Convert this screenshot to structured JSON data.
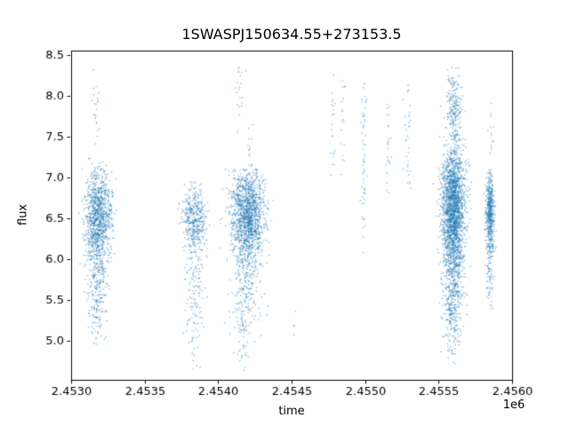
{
  "chart_data": {
    "type": "scatter",
    "title": "1SWASPJ150634.55+273153.5",
    "xlabel": "time",
    "ylabel": "flux",
    "x_offset_text": "1e6",
    "xlim": [
      2.453,
      2.456
    ],
    "ylim": [
      4.52,
      8.55
    ],
    "xticks": {
      "values": [
        2.453,
        2.4535,
        2.454,
        2.4545,
        2.455,
        2.4555,
        2.456
      ],
      "labels": [
        "2.4530",
        "2.4535",
        "2.4540",
        "2.4545",
        "2.4550",
        "2.4555",
        "2.4560"
      ]
    },
    "yticks": {
      "values": [
        5.0,
        5.5,
        6.0,
        6.5,
        7.0,
        7.5,
        8.0,
        8.5
      ],
      "labels": [
        "5.0",
        "5.5",
        "6.0",
        "6.5",
        "7.0",
        "7.5",
        "8.0",
        "8.5"
      ]
    },
    "grid": false,
    "legend": null,
    "marker": {
      "size": 1.4,
      "color": "#1f77b4",
      "alpha": 0.5
    },
    "seed": 42,
    "clusters": [
      {
        "x": 2.453185,
        "xs": 4.5e-05,
        "y": 6.55,
        "ys": 0.28,
        "n": 900,
        "ymin": 5.85,
        "ymax": 7.25
      },
      {
        "x": 2.45318,
        "xs": 4e-05,
        "y": 6.05,
        "ys": 0.4,
        "n": 320,
        "ymin": 5.15,
        "ymax": 6.9
      },
      {
        "x": 2.453178,
        "xs": 3e-05,
        "y": 5.45,
        "ys": 0.28,
        "n": 110,
        "ymin": 4.95,
        "ymax": 6.0
      },
      {
        "x": 2.45316,
        "xs": 1.8e-05,
        "y": 7.85,
        "ys": 0.3,
        "n": 22,
        "ymin": 7.35,
        "ymax": 8.35
      },
      {
        "x": 2.45384,
        "xs": 3.8e-05,
        "y": 6.5,
        "ys": 0.2,
        "n": 420,
        "ymin": 6.0,
        "ymax": 6.95
      },
      {
        "x": 2.453838,
        "xs": 3e-05,
        "y": 5.85,
        "ys": 0.45,
        "n": 140,
        "ymin": 4.8,
        "ymax": 6.35
      },
      {
        "x": 2.453832,
        "xs": 1.8e-05,
        "y": 5.0,
        "ys": 0.25,
        "n": 18,
        "ymin": 4.6,
        "ymax": 5.5
      },
      {
        "x": 2.4542,
        "xs": 5.8e-05,
        "y": 6.55,
        "ys": 0.28,
        "n": 1400,
        "ymin": 5.9,
        "ymax": 7.1
      },
      {
        "x": 2.454195,
        "xs": 5e-05,
        "y": 5.85,
        "ys": 0.45,
        "n": 300,
        "ymin": 4.85,
        "ymax": 6.4
      },
      {
        "x": 2.45417,
        "xs": 2.5e-05,
        "y": 5.05,
        "ys": 0.25,
        "n": 35,
        "ymin": 4.6,
        "ymax": 5.6
      },
      {
        "x": 2.45414,
        "xs": 1.8e-05,
        "y": 8.0,
        "ys": 0.28,
        "n": 22,
        "ymin": 7.5,
        "ymax": 8.35
      },
      {
        "x": 2.454215,
        "xs": 1.2e-05,
        "y": 7.3,
        "ys": 0.18,
        "n": 14,
        "ymin": 7.05,
        "ymax": 7.7
      },
      {
        "x": 2.45452,
        "xs": 6e-06,
        "y": 5.2,
        "ys": 0.1,
        "n": 4,
        "ymin": 5.0,
        "ymax": 5.4
      },
      {
        "x": 2.45478,
        "xs": 8e-06,
        "y": 7.6,
        "ys": 0.45,
        "n": 22,
        "ymin": 6.85,
        "ymax": 8.35
      },
      {
        "x": 2.45485,
        "xs": 8e-06,
        "y": 7.5,
        "ys": 0.45,
        "n": 18,
        "ymin": 6.5,
        "ymax": 8.3
      },
      {
        "x": 2.45499,
        "xs": 1e-05,
        "y": 7.2,
        "ys": 0.65,
        "n": 60,
        "ymin": 5.95,
        "ymax": 8.35
      },
      {
        "x": 2.45516,
        "xs": 8e-06,
        "y": 7.4,
        "ys": 0.5,
        "n": 24,
        "ymin": 6.55,
        "ymax": 8.3
      },
      {
        "x": 2.45529,
        "xs": 1e-05,
        "y": 7.4,
        "ys": 0.55,
        "n": 34,
        "ymin": 6.4,
        "ymax": 8.35
      },
      {
        "x": 2.4556,
        "xs": 4e-05,
        "y": 6.7,
        "ys": 0.34,
        "n": 1800,
        "ymin": 5.9,
        "ymax": 7.5
      },
      {
        "x": 2.455598,
        "xs": 3.5e-05,
        "y": 5.95,
        "ys": 0.38,
        "n": 650,
        "ymin": 5.2,
        "ymax": 6.6
      },
      {
        "x": 2.455592,
        "xs": 2.8e-05,
        "y": 5.25,
        "ys": 0.28,
        "n": 140,
        "ymin": 4.7,
        "ymax": 5.75
      },
      {
        "x": 2.455605,
        "xs": 2.8e-05,
        "y": 7.8,
        "ys": 0.3,
        "n": 230,
        "ymin": 7.45,
        "ymax": 8.35
      },
      {
        "x": 2.45585,
        "xs": 1.4e-05,
        "y": 6.6,
        "ys": 0.24,
        "n": 500,
        "ymin": 6.0,
        "ymax": 7.1
      },
      {
        "x": 2.455848,
        "xs": 1.2e-05,
        "y": 5.95,
        "ys": 0.32,
        "n": 110,
        "ymin": 5.2,
        "ymax": 6.45
      },
      {
        "x": 2.455852,
        "xs": 1e-05,
        "y": 7.35,
        "ys": 0.35,
        "n": 18,
        "ymin": 6.95,
        "ymax": 8.05
      }
    ]
  }
}
